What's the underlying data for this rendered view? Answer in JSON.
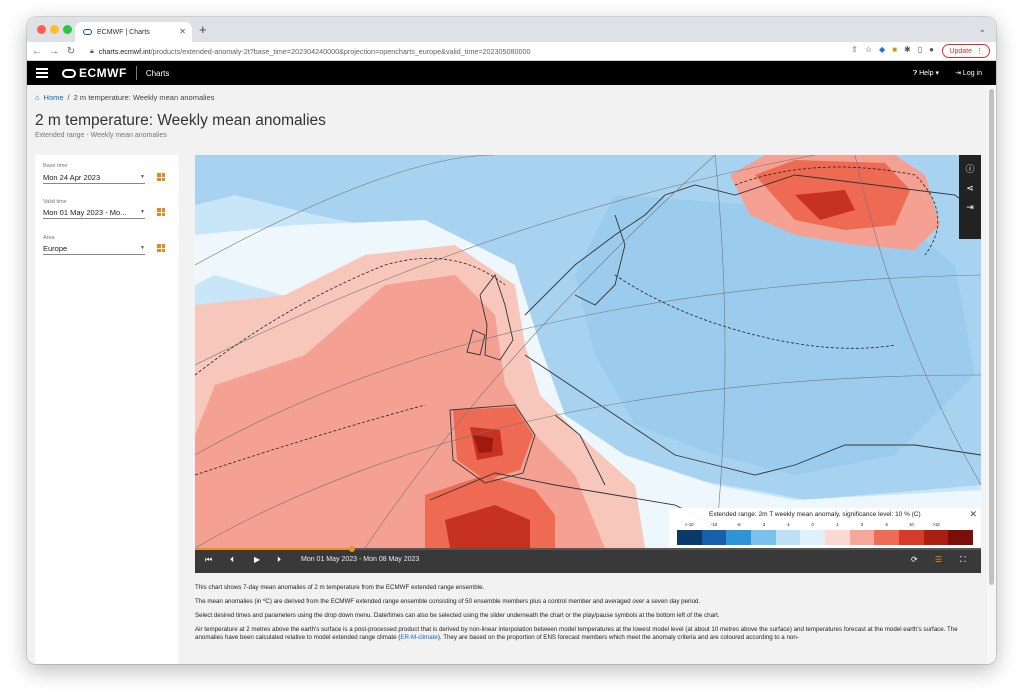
{
  "browser": {
    "tab_title": "ECMWF | Charts",
    "url_host": "charts.ecmwf.int",
    "url_path": "/products/extended-anomaly-2t?base_time=202304240000&projection=opencharts_europe&valid_time=202305080000",
    "update_label": "Update"
  },
  "header": {
    "logo": "ECMWF",
    "section": "Charts",
    "help": "Help",
    "login": "Log in"
  },
  "breadcrumb": {
    "home": "Home",
    "current": "2 m temperature: Weekly mean anomalies"
  },
  "page": {
    "title": "2 m temperature: Weekly mean anomalies",
    "subtitle": "Extended range - Weekly mean anomalies"
  },
  "controls": {
    "base_time_label": "Base time",
    "base_time_value": "Mon 24 Apr 2023",
    "valid_time_label": "Valid time",
    "valid_time_value": "Mon 01 May 2023 - Mo...",
    "area_label": "Area",
    "area_value": "Europe"
  },
  "legend": {
    "title": "Extended range: 2m T weekly mean anomaly, significance level: 10 % (C)",
    "ticks": [
      "<-10",
      "-10",
      "-6",
      "-3",
      "-1",
      "0",
      "1",
      "3",
      "6",
      "10",
      ">10"
    ],
    "colors": [
      "#0a3b68",
      "#1560a8",
      "#2f94d6",
      "#7cc0ec",
      "#bde0f6",
      "#e0f1fb",
      "#fbd8d2",
      "#f5a898",
      "#ee6c55",
      "#d63a28",
      "#aa1f12",
      "#7a0f08"
    ]
  },
  "map_colors": {
    "ocean_light_blue": "#c8e6f7",
    "blue_anomaly": "#a7d3f0",
    "red_light": "#f8c7bc",
    "red_mid": "#f4a193",
    "red_strong": "#ee6a52",
    "red_dark": "#c7311f"
  },
  "player": {
    "date_range": "Mon 01 May 2023 - Mon 08 May 2023",
    "progress": 0.2
  },
  "description": {
    "p1": "This chart shows 7-day mean anomalies of 2 m temperature from the ECMWF extended range ensemble.",
    "p2": "The mean anomalies (in ºC) are derived from the ECMWF extended range ensemble consisting of 50 ensemble members plus a control member and averaged over a seven day period.",
    "p3": "Select desired times and parameters using the drop down menu.  Date/times can also be selected using the slider underneath the chart or the play/pause symbols at the bottom left of the chart.",
    "p4a": "Air temperature at 2 metres above the earth's surface is a post-processed product that is derived by non-linear interpolation between model temperatures at the lowest model level (at about 10 metres above the surface) and temperatures forecast at the model earth's surface.  The anomalies have been calculated relative to model extended range climate (",
    "p4link": "ER-M-climate",
    "p4b": ").  They are based on the proportion of ENS forecast members which meet the anomaly criteria and are coloured according to a non-"
  }
}
